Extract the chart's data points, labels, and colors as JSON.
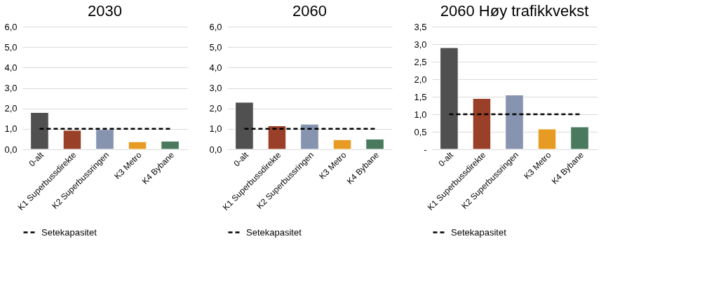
{
  "chart_data": [
    {
      "type": "bar",
      "title": "2030",
      "categories": [
        "0-alt",
        "K1 Superbussdirekte",
        "K2 Superbussringen",
        "K3 Metro",
        "K4 Bybane"
      ],
      "series": [
        {
          "colors": [
            "#505050",
            "#9a3f28",
            "#8794b0",
            "#e89b22",
            "#4a7a5e"
          ],
          "values": [
            1.8,
            0.93,
            0.97,
            0.37,
            0.4
          ]
        },
        {
          "type": "line",
          "name": "Setekapasitet",
          "color": "#000000",
          "line_style": "dashed",
          "values": [
            1,
            1,
            1,
            1,
            1
          ]
        }
      ],
      "ylim": [
        0,
        6
      ],
      "yticks": [
        {
          "value": 0,
          "label": "0,0"
        },
        {
          "value": 1,
          "label": "1,0"
        },
        {
          "value": 2,
          "label": "2,0"
        },
        {
          "value": 3,
          "label": "3,0"
        },
        {
          "value": 4,
          "label": "4,0"
        },
        {
          "value": 5,
          "label": "5,0"
        },
        {
          "value": 6,
          "label": "6,0"
        }
      ],
      "grid": "y",
      "legend": "bottom"
    },
    {
      "type": "bar",
      "title": "2060",
      "categories": [
        "0-alt",
        "K1 Superbussdirekte",
        "K2 Superbussringen",
        "K3 Metro",
        "K4 Bybane"
      ],
      "series": [
        {
          "colors": [
            "#505050",
            "#9a3f28",
            "#8794b0",
            "#e89b22",
            "#4a7a5e"
          ],
          "values": [
            2.3,
            1.15,
            1.23,
            0.47,
            0.5
          ]
        },
        {
          "type": "line",
          "name": "Setekapasitet",
          "color": "#000000",
          "line_style": "dashed",
          "values": [
            1,
            1,
            1,
            1,
            1
          ]
        }
      ],
      "ylim": [
        0,
        6
      ],
      "yticks": [
        {
          "value": 0,
          "label": "0,0"
        },
        {
          "value": 1,
          "label": "1,0"
        },
        {
          "value": 2,
          "label": "2,0"
        },
        {
          "value": 3,
          "label": "3,0"
        },
        {
          "value": 4,
          "label": "4,0"
        },
        {
          "value": 5,
          "label": "5,0"
        },
        {
          "value": 6,
          "label": "6,0"
        }
      ],
      "grid": "y",
      "legend": "bottom"
    },
    {
      "type": "bar",
      "title": "2060 Høy trafikkvekst",
      "categories": [
        "0-alt",
        "K1 Superbussdirekte",
        "K2 Superbussringen",
        "K3 Metro",
        "K4 Bybane"
      ],
      "series": [
        {
          "colors": [
            "#505050",
            "#9a3f28",
            "#8794b0",
            "#e89b22",
            "#4a7a5e"
          ],
          "values": [
            2.9,
            1.45,
            1.55,
            0.58,
            0.64
          ]
        },
        {
          "type": "line",
          "name": "Setekapasitet",
          "color": "#000000",
          "line_style": "dashed",
          "values": [
            1,
            1,
            1,
            1,
            1
          ]
        }
      ],
      "ylim": [
        0,
        3.5
      ],
      "yticks": [
        {
          "value": 0,
          "label": "-"
        },
        {
          "value": 0.5,
          "label": "0,5"
        },
        {
          "value": 1,
          "label": "1,0"
        },
        {
          "value": 1.5,
          "label": "1,5"
        },
        {
          "value": 2,
          "label": "2,0"
        },
        {
          "value": 2.5,
          "label": "2,5"
        },
        {
          "value": 3,
          "label": "3,0"
        },
        {
          "value": 3.5,
          "label": "3,5"
        }
      ],
      "grid": "y",
      "legend": "bottom"
    }
  ]
}
